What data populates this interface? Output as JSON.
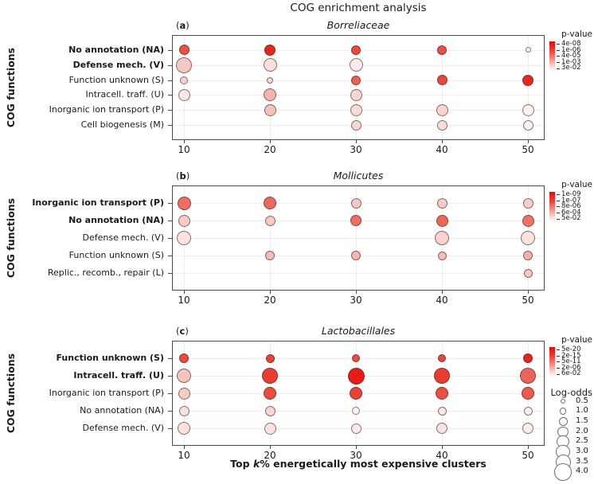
{
  "chart_data": {
    "type": "bubble-grid",
    "title": "COG enrichment analysis",
    "x_axis": {
      "label_parts": {
        "prefix": "Top ",
        "italic": "k",
        "suffix": "% energetically most expensive clusters"
      },
      "ticks": [
        "10",
        "20",
        "30",
        "40",
        "50"
      ]
    },
    "y_axis_group_label": "COG functions",
    "points_format": [
      "row_index",
      "k_percent",
      "radius_px",
      "fill_hex",
      "log_odds_est"
    ],
    "panels": [
      {
        "letter": "a",
        "subtitle": "Borreliaceae",
        "rows": [
          {
            "label": "No annotation (NA)",
            "bold": true
          },
          {
            "label": "Defense mech. (V)",
            "bold": true
          },
          {
            "label": "Function unknown (S)",
            "bold": false
          },
          {
            "label": "Intracell. traff. (U)",
            "bold": false
          },
          {
            "label": "Inorganic ion transport (P)",
            "bold": false
          },
          {
            "label": "Cell biogenesis (M)",
            "bold": false
          }
        ],
        "pvalue_legend": {
          "title": "p-value",
          "ticks": [
            "4e-08",
            "1e-06",
            "4e-05",
            "1e-03",
            "3e-02"
          ]
        },
        "points": [
          [
            0,
            10,
            6.5,
            "#ec5347",
            2.0
          ],
          [
            0,
            20,
            7.0,
            "#e5261d",
            2.0
          ],
          [
            0,
            30,
            6.0,
            "#e94b3d",
            1.5
          ],
          [
            0,
            40,
            6.0,
            "#eb5044",
            1.5
          ],
          [
            0,
            50,
            3.5,
            "#fdf4f3",
            0.5
          ],
          [
            1,
            10,
            10.0,
            "#f5c8c3",
            3.5
          ],
          [
            1,
            20,
            8.5,
            "#f9ded9",
            3.0
          ],
          [
            1,
            30,
            8.5,
            "#fcebe9",
            3.0
          ],
          [
            2,
            10,
            5.0,
            "#f7d2cd",
            1.0
          ],
          [
            2,
            20,
            4.0,
            "#f7d6d1",
            0.5
          ],
          [
            2,
            30,
            6.0,
            "#ed6054",
            1.5
          ],
          [
            2,
            40,
            6.5,
            "#ea4639",
            2.0
          ],
          [
            2,
            50,
            7.0,
            "#e6281f",
            2.0
          ],
          [
            3,
            10,
            7.5,
            "#fbe8e6",
            2.5
          ],
          [
            3,
            20,
            8.0,
            "#f3b5ae",
            2.5
          ],
          [
            3,
            30,
            7.5,
            "#f8d6d2",
            2.5
          ],
          [
            4,
            20,
            7.5,
            "#f5c1bb",
            2.5
          ],
          [
            4,
            30,
            7.5,
            "#f9dbd7",
            2.5
          ],
          [
            4,
            40,
            7.5,
            "#f8d4cf",
            2.5
          ],
          [
            4,
            50,
            7.5,
            "#fdf2f1",
            2.5
          ],
          [
            5,
            30,
            6.5,
            "#f8d7d2",
            2.0
          ],
          [
            5,
            40,
            6.5,
            "#f9dcd8",
            2.0
          ],
          [
            5,
            50,
            6.5,
            "#fdf1ef",
            2.0
          ]
        ]
      },
      {
        "letter": "b",
        "subtitle": "Mollicutes",
        "rows": [
          {
            "label": "Inorganic ion transport (P)",
            "bold": true
          },
          {
            "label": "No annotation (NA)",
            "bold": true
          },
          {
            "label": "Defense mech. (V)",
            "bold": false
          },
          {
            "label": "Function unknown (S)",
            "bold": false
          },
          {
            "label": "Replic., recomb., repair (L)",
            "bold": false
          }
        ],
        "pvalue_legend": {
          "title": "p-value",
          "ticks": [
            "1e-09",
            "1e-07",
            "8e-06",
            "6e-04",
            "5e-02"
          ]
        },
        "points": [
          [
            0,
            10,
            8.5,
            "#ee6e63",
            3.0
          ],
          [
            0,
            20,
            8.0,
            "#ed685d",
            2.5
          ],
          [
            0,
            30,
            6.5,
            "#f7c8c3",
            2.0
          ],
          [
            0,
            40,
            6.5,
            "#f7cbc6",
            2.0
          ],
          [
            0,
            50,
            6.5,
            "#f8d1cc",
            2.0
          ],
          [
            1,
            10,
            7.5,
            "#f6cac5",
            2.5
          ],
          [
            1,
            20,
            6.5,
            "#f6c9c4",
            2.0
          ],
          [
            1,
            30,
            7.0,
            "#ee6e62",
            2.0
          ],
          [
            1,
            40,
            7.5,
            "#ed665a",
            2.5
          ],
          [
            1,
            50,
            7.5,
            "#ef7367",
            2.5
          ],
          [
            2,
            10,
            9.0,
            "#fae3e0",
            3.0
          ],
          [
            2,
            40,
            9.0,
            "#f8d3ce",
            3.0
          ],
          [
            2,
            50,
            9.0,
            "#fae4e1",
            3.0
          ],
          [
            3,
            20,
            6.0,
            "#f4bcb5",
            1.5
          ],
          [
            3,
            30,
            6.0,
            "#f4b8b1",
            1.5
          ],
          [
            3,
            40,
            5.5,
            "#f5bdb6",
            1.5
          ],
          [
            3,
            50,
            6.0,
            "#f3b2ab",
            1.5
          ],
          [
            4,
            50,
            5.5,
            "#f7c9c4",
            1.5
          ]
        ]
      },
      {
        "letter": "c",
        "subtitle": "Lactobacillales",
        "rows": [
          {
            "label": "Function unknown (S)",
            "bold": true
          },
          {
            "label": "Intracell. traff. (U)",
            "bold": true
          },
          {
            "label": "Inorganic ion transport (P)",
            "bold": false
          },
          {
            "label": "No annotation (NA)",
            "bold": false
          },
          {
            "label": "Defense mech. (V)",
            "bold": false
          }
        ],
        "pvalue_legend": {
          "title": "p-value",
          "ticks": [
            "5e-20",
            "2e-15",
            "5e-11",
            "2e-06",
            "6e-02"
          ]
        },
        "points": [
          [
            0,
            10,
            6.0,
            "#ea4a3e",
            1.5
          ],
          [
            0,
            20,
            5.5,
            "#e94136",
            1.5
          ],
          [
            0,
            30,
            5.0,
            "#ea4a3e",
            1.0
          ],
          [
            0,
            40,
            5.0,
            "#e9443a",
            1.0
          ],
          [
            0,
            50,
            6.0,
            "#e6251c",
            1.5
          ],
          [
            1,
            10,
            9.0,
            "#f5c3bd",
            3.0
          ],
          [
            1,
            20,
            10.0,
            "#e93e33",
            3.5
          ],
          [
            1,
            30,
            10.5,
            "#e61d15",
            4.0
          ],
          [
            1,
            40,
            10.0,
            "#e93d32",
            3.5
          ],
          [
            1,
            50,
            10.0,
            "#ed655a",
            3.5
          ],
          [
            2,
            10,
            7.5,
            "#f6cac5",
            2.5
          ],
          [
            2,
            20,
            8.0,
            "#ea4b40",
            2.5
          ],
          [
            2,
            30,
            8.0,
            "#e94237",
            2.5
          ],
          [
            2,
            40,
            8.0,
            "#ea4f43",
            2.5
          ],
          [
            2,
            50,
            8.0,
            "#ec5a4e",
            2.5
          ],
          [
            3,
            10,
            6.5,
            "#f9e0dd",
            2.0
          ],
          [
            3,
            20,
            6.5,
            "#f7d5d0",
            2.0
          ],
          [
            3,
            30,
            5.0,
            "#fcf0ee",
            1.0
          ],
          [
            3,
            40,
            5.5,
            "#fae7e5",
            1.5
          ],
          [
            3,
            50,
            5.5,
            "#fbeeec",
            1.5
          ],
          [
            4,
            10,
            8.0,
            "#fae2df",
            2.5
          ],
          [
            4,
            20,
            7.5,
            "#fae4e1",
            2.5
          ],
          [
            4,
            30,
            6.5,
            "#fcebe9",
            2.0
          ],
          [
            4,
            40,
            7.0,
            "#f9e2df",
            2.0
          ],
          [
            4,
            50,
            7.0,
            "#fbedeb",
            2.0
          ]
        ]
      }
    ],
    "size_legend": {
      "title": "Log-odds",
      "entries": [
        {
          "log_odds": "0.5",
          "r": 3.0
        },
        {
          "log_odds": "1.0",
          "r": 4.3
        },
        {
          "log_odds": "1.5",
          "r": 5.5
        },
        {
          "log_odds": "2.0",
          "r": 6.6
        },
        {
          "log_odds": "2.5",
          "r": 7.6
        },
        {
          "log_odds": "3.0",
          "r": 8.6
        },
        {
          "log_odds": "3.5",
          "r": 9.5
        },
        {
          "log_odds": "4.0",
          "r": 10.8
        }
      ]
    },
    "colors": {
      "grid": "#f3eaea",
      "panel_border": "#4a4a4a",
      "gradient_top_red": "#de0f09",
      "brightest_dot_red": "#e61d15"
    }
  }
}
